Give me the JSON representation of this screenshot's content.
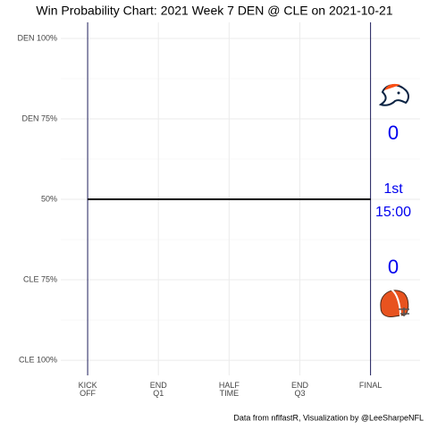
{
  "chart_data": {
    "type": "line",
    "title": "Win Probability Chart: 2021 Week 7 DEN @ CLE on 2021-10-21",
    "caption": "Data from nflfastR, Visualization by @LeeSharpeNFL",
    "x": [
      0,
      60
    ],
    "series": [
      {
        "color": "#000000",
        "values": [
          50,
          50
        ]
      }
    ],
    "xlim": [
      -5.7,
      70.5
    ],
    "ylim": [
      -4.7,
      105
    ],
    "xticks": [
      {
        "value": 0,
        "label": "KICK\nOFF"
      },
      {
        "value": 15,
        "label": "END\nQ1"
      },
      {
        "value": 30,
        "label": "HALF\nTIME"
      },
      {
        "value": 45,
        "label": "END\nQ3"
      },
      {
        "value": 60,
        "label": "FINAL"
      }
    ],
    "yticks": [
      {
        "value": 100,
        "label": "DEN 100%"
      },
      {
        "value": 75,
        "label": "DEN 75%"
      },
      {
        "value": 50,
        "label": "50%"
      },
      {
        "value": 25,
        "label": "CLE 75%"
      },
      {
        "value": 0,
        "label": "CLE 100%"
      }
    ],
    "minor_yticks": [
      87.5,
      62.5,
      37.5,
      12.5
    ],
    "grid": true,
    "boundary_color": "#1c1c5a",
    "annotations": {
      "away_score": "0",
      "quarter": "1st",
      "clock": "15:00",
      "home_score": "0",
      "color": "#0000ee"
    }
  }
}
